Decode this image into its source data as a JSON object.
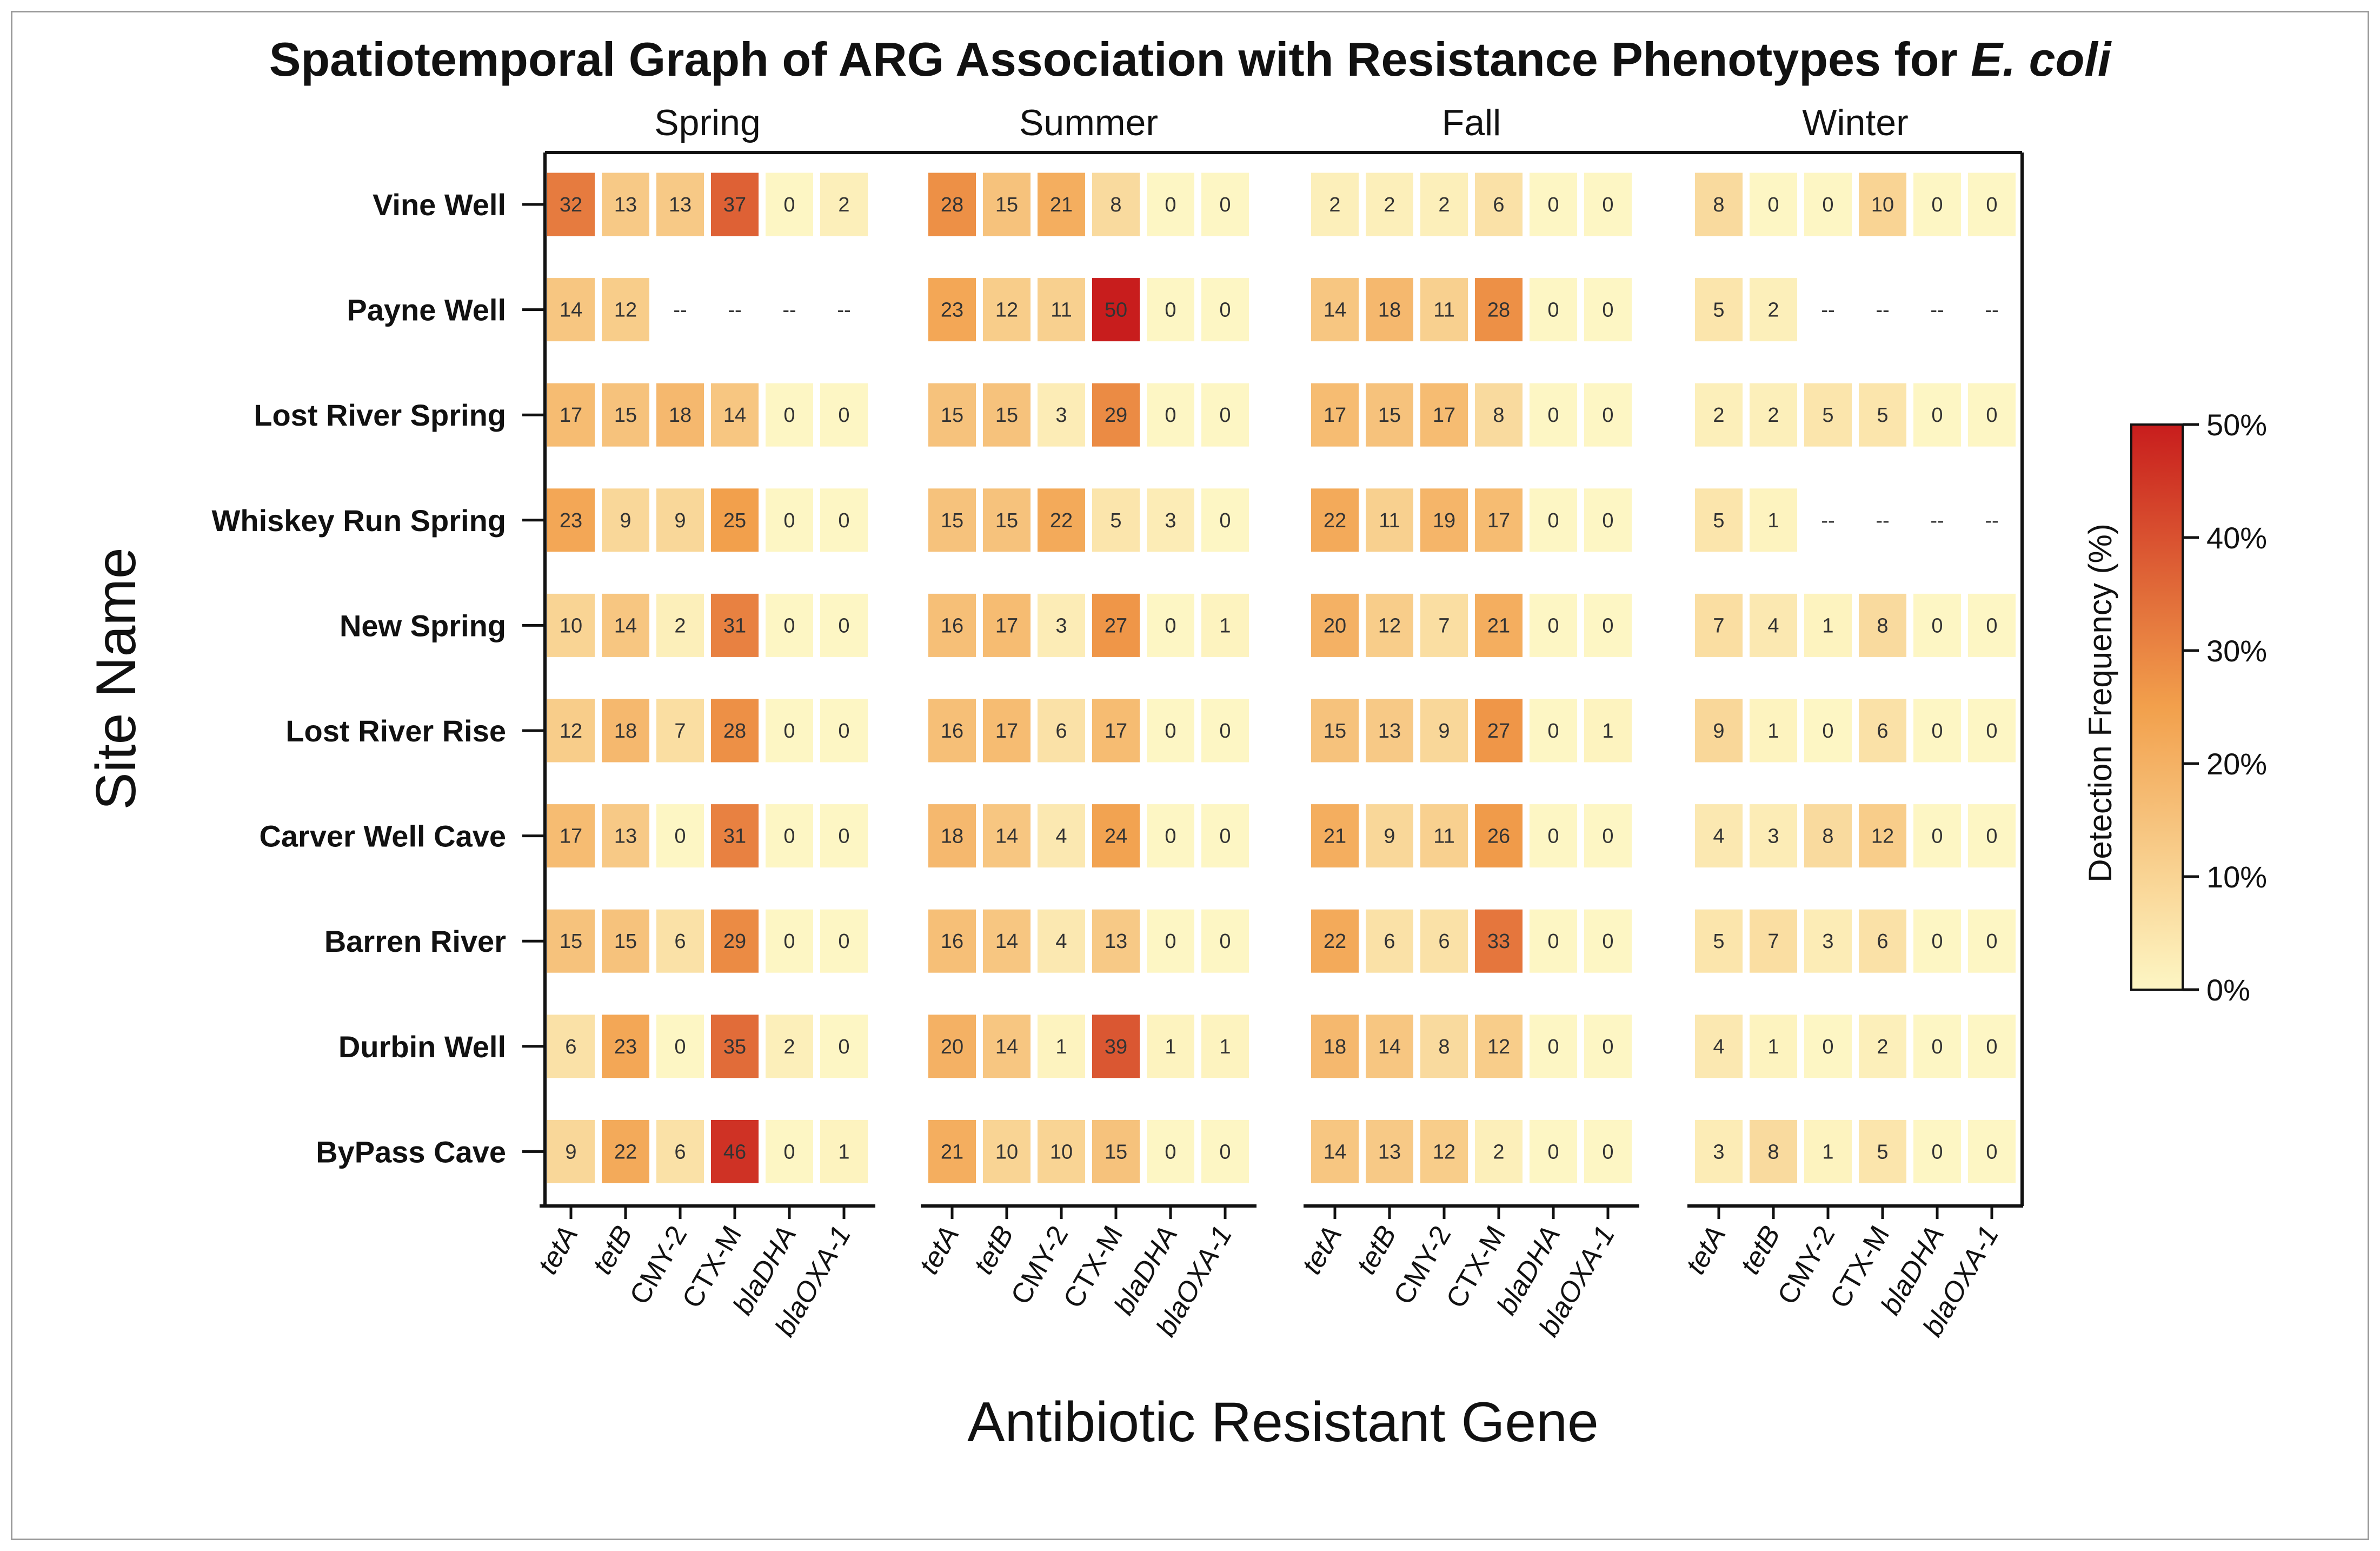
{
  "chart_data": {
    "type": "heatmap",
    "title": "Spatiotemporal Graph of ARG Association with Resistance Phenotypes for ",
    "title_italic": "E. coli",
    "xlabel": "Antibiotic Resistant Gene",
    "ylabel": "Site Name",
    "colorbar_label": "Detection Frequency (%)",
    "colorbar_ticks": [
      "0%",
      "10%",
      "20%",
      "30%",
      "40%",
      "50%"
    ],
    "colorbar_range": [
      0,
      50
    ],
    "missing_label": "--",
    "colors": {
      "low": "#fdf6c4",
      "mid": "#f2a04c",
      "high": "#c81d1d"
    },
    "seasons": [
      "Spring",
      "Summer",
      "Fall",
      "Winter"
    ],
    "genes": [
      "tetA",
      "tetB",
      "CMY-2",
      "CTX-M",
      "blaDHA",
      "blaOXA-1"
    ],
    "sites": [
      "Vine Well",
      "Payne Well",
      "Lost River Spring",
      "Whiskey Run Spring",
      "New Spring",
      "Lost River Rise",
      "Carver Well Cave",
      "Barren River",
      "Durbin Well",
      "ByPass Cave"
    ],
    "values": {
      "Spring": [
        [
          32,
          13,
          13,
          37,
          0,
          2
        ],
        [
          14,
          12,
          null,
          null,
          null,
          null
        ],
        [
          17,
          15,
          18,
          14,
          0,
          0
        ],
        [
          23,
          9,
          9,
          25,
          0,
          0
        ],
        [
          10,
          14,
          2,
          31,
          0,
          0
        ],
        [
          12,
          18,
          7,
          28,
          0,
          0
        ],
        [
          17,
          13,
          0,
          31,
          0,
          0
        ],
        [
          15,
          15,
          6,
          29,
          0,
          0
        ],
        [
          6,
          23,
          0,
          35,
          2,
          0
        ],
        [
          9,
          22,
          6,
          46,
          0,
          1
        ]
      ],
      "Summer": [
        [
          28,
          15,
          21,
          8,
          0,
          0
        ],
        [
          23,
          12,
          11,
          50,
          0,
          0
        ],
        [
          15,
          15,
          3,
          29,
          0,
          0
        ],
        [
          15,
          15,
          22,
          5,
          3,
          0
        ],
        [
          16,
          17,
          3,
          27,
          0,
          1
        ],
        [
          16,
          17,
          6,
          17,
          0,
          0
        ],
        [
          18,
          14,
          4,
          24,
          0,
          0
        ],
        [
          16,
          14,
          4,
          13,
          0,
          0
        ],
        [
          20,
          14,
          1,
          39,
          1,
          1
        ],
        [
          21,
          10,
          10,
          15,
          0,
          0
        ]
      ],
      "Fall": [
        [
          2,
          2,
          2,
          6,
          0,
          0
        ],
        [
          14,
          18,
          11,
          28,
          0,
          0
        ],
        [
          17,
          15,
          17,
          8,
          0,
          0
        ],
        [
          22,
          11,
          19,
          17,
          0,
          0
        ],
        [
          20,
          12,
          7,
          21,
          0,
          0
        ],
        [
          15,
          13,
          9,
          27,
          0,
          1
        ],
        [
          21,
          9,
          11,
          26,
          0,
          0
        ],
        [
          22,
          6,
          6,
          33,
          0,
          0
        ],
        [
          18,
          14,
          8,
          12,
          0,
          0
        ],
        [
          14,
          13,
          12,
          2,
          0,
          0
        ]
      ],
      "Winter": [
        [
          8,
          0,
          0,
          10,
          0,
          0
        ],
        [
          5,
          2,
          null,
          null,
          null,
          null
        ],
        [
          2,
          2,
          5,
          5,
          0,
          0
        ],
        [
          5,
          1,
          null,
          null,
          null,
          null
        ],
        [
          7,
          4,
          1,
          8,
          0,
          0
        ],
        [
          9,
          1,
          0,
          6,
          0,
          0
        ],
        [
          4,
          3,
          8,
          12,
          0,
          0
        ],
        [
          5,
          7,
          3,
          6,
          0,
          0
        ],
        [
          4,
          1,
          0,
          2,
          0,
          0
        ],
        [
          3,
          8,
          1,
          5,
          0,
          0
        ]
      ]
    }
  }
}
